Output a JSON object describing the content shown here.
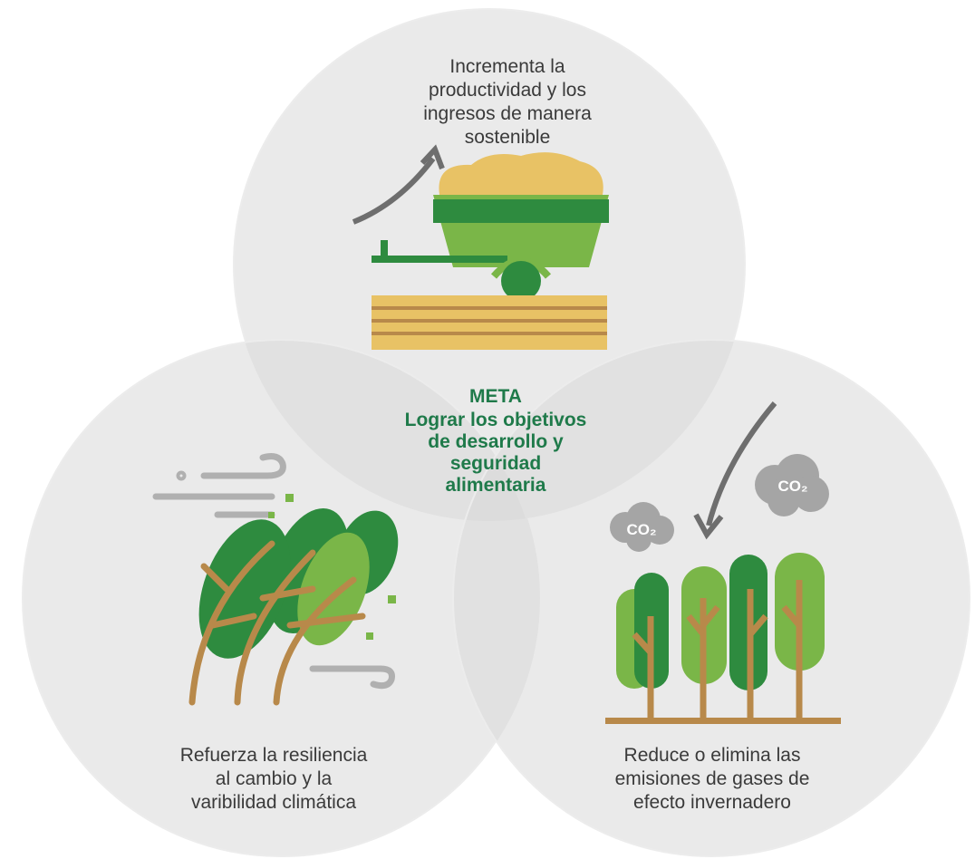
{
  "circles": [
    {
      "lines": [
        "Incrementa la",
        "productividad y los",
        "ingresos de manera",
        "sostenible"
      ]
    },
    {
      "lines": [
        "Refuerza la resiliencia",
        "al cambio y la",
        "varibilidad climática"
      ]
    },
    {
      "lines": [
        "Reduce o elimina las",
        "emisiones de gases de",
        "efecto invernadero"
      ]
    }
  ],
  "center": {
    "title": "META",
    "lines": [
      "Lograr los objetivos",
      "de desarrollo y",
      "seguridad",
      "alimentaria"
    ]
  },
  "co2_labels": [
    "CO₂",
    "CO₂"
  ]
}
